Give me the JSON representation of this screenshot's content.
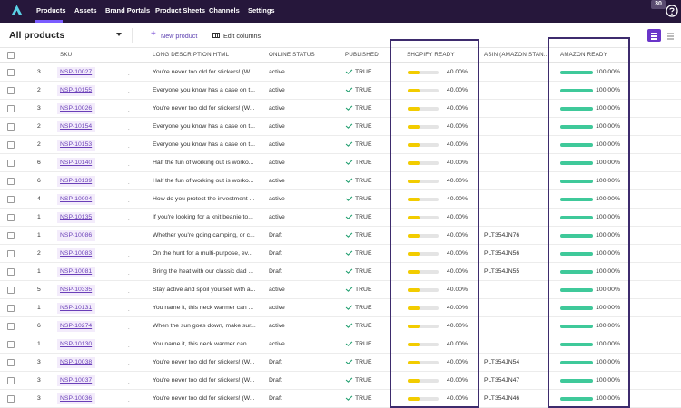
{
  "nav": {
    "items": [
      "Products",
      "Assets",
      "Brand Portals",
      "Product Sheets",
      "Channels",
      "Settings"
    ],
    "active": "Products",
    "notification_count": "30"
  },
  "toolbar": {
    "view_label": "All products",
    "new_product_label": "New product",
    "edit_columns_label": "Edit columns"
  },
  "columns": {
    "sku": "SKU",
    "long_description": "LONG DESCRIPTION HTML",
    "online_status": "ONLINE STATUS",
    "published": "PUBLISHED",
    "shopify_ready": "SHOPIFY READY",
    "asin": "ASIN (AMAZON STAN...",
    "amazon_ready": "AMAZON READY"
  },
  "rows": [
    {
      "count": "3",
      "sku": "NSP-10027",
      "desc": "You're never too old for stickers! (W...",
      "status": "active",
      "published": "TRUE",
      "shopify": "40.00%",
      "shopify_value": 0.4,
      "asin": "",
      "amazon": "100.00%",
      "amazon_value": 1.0
    },
    {
      "count": "2",
      "sku": "NSP-10155",
      "desc": "Everyone you know has a case on t...",
      "status": "active",
      "published": "TRUE",
      "shopify": "40.00%",
      "shopify_value": 0.4,
      "asin": "",
      "amazon": "100.00%",
      "amazon_value": 1.0
    },
    {
      "count": "3",
      "sku": "NSP-10026",
      "desc": "You're never too old for stickers! (W...",
      "status": "active",
      "published": "TRUE",
      "shopify": "40.00%",
      "shopify_value": 0.4,
      "asin": "",
      "amazon": "100.00%",
      "amazon_value": 1.0
    },
    {
      "count": "2",
      "sku": "NSP-10154",
      "desc": "Everyone you know has a case on t...",
      "status": "active",
      "published": "TRUE",
      "shopify": "40.00%",
      "shopify_value": 0.4,
      "asin": "",
      "amazon": "100.00%",
      "amazon_value": 1.0
    },
    {
      "count": "2",
      "sku": "NSP-10153",
      "desc": "Everyone you know has a case on t...",
      "status": "active",
      "published": "TRUE",
      "shopify": "40.00%",
      "shopify_value": 0.4,
      "asin": "",
      "amazon": "100.00%",
      "amazon_value": 1.0
    },
    {
      "count": "6",
      "sku": "NSP-10140",
      "desc": "Half the fun of working out is worko...",
      "status": "active",
      "published": "TRUE",
      "shopify": "40.00%",
      "shopify_value": 0.4,
      "asin": "",
      "amazon": "100.00%",
      "amazon_value": 1.0
    },
    {
      "count": "6",
      "sku": "NSP-10139",
      "desc": "Half the fun of working out is worko...",
      "status": "active",
      "published": "TRUE",
      "shopify": "40.00%",
      "shopify_value": 0.4,
      "asin": "",
      "amazon": "100.00%",
      "amazon_value": 1.0
    },
    {
      "count": "4",
      "sku": "NSP-10004",
      "desc": "How do you protect the investment ...",
      "status": "active",
      "published": "TRUE",
      "shopify": "40.00%",
      "shopify_value": 0.4,
      "asin": "",
      "amazon": "100.00%",
      "amazon_value": 1.0
    },
    {
      "count": "1",
      "sku": "NSP-10135",
      "desc": "If you're looking for a knit beanie to...",
      "status": "active",
      "published": "TRUE",
      "shopify": "40.00%",
      "shopify_value": 0.4,
      "asin": "",
      "amazon": "100.00%",
      "amazon_value": 1.0
    },
    {
      "count": "1",
      "sku": "NSP-10086",
      "desc": "Whether you're going camping, or c...",
      "status": "Draft",
      "published": "TRUE",
      "shopify": "40.00%",
      "shopify_value": 0.4,
      "asin": "PLT354JN76",
      "amazon": "100.00%",
      "amazon_value": 1.0
    },
    {
      "count": "2",
      "sku": "NSP-10083",
      "desc": "On the hunt for a multi-purpose, ev...",
      "status": "Draft",
      "published": "TRUE",
      "shopify": "40.00%",
      "shopify_value": 0.4,
      "asin": "PLT354JN56",
      "amazon": "100.00%",
      "amazon_value": 1.0
    },
    {
      "count": "1",
      "sku": "NSP-10081",
      "desc": "Bring the heat with our classic dad ...",
      "status": "Draft",
      "published": "TRUE",
      "shopify": "40.00%",
      "shopify_value": 0.4,
      "asin": "PLT354JN55",
      "amazon": "100.00%",
      "amazon_value": 1.0
    },
    {
      "count": "5",
      "sku": "NSP-10335",
      "desc": "Stay active and spoil yourself with a...",
      "status": "active",
      "published": "TRUE",
      "shopify": "40.00%",
      "shopify_value": 0.4,
      "asin": "",
      "amazon": "100.00%",
      "amazon_value": 1.0
    },
    {
      "count": "1",
      "sku": "NSP-10131",
      "desc": "You name it, this neck warmer can ...",
      "status": "active",
      "published": "TRUE",
      "shopify": "40.00%",
      "shopify_value": 0.4,
      "asin": "",
      "amazon": "100.00%",
      "amazon_value": 1.0
    },
    {
      "count": "6",
      "sku": "NSP-10274",
      "desc": "When the sun goes down, make sur...",
      "status": "active",
      "published": "TRUE",
      "shopify": "40.00%",
      "shopify_value": 0.4,
      "asin": "",
      "amazon": "100.00%",
      "amazon_value": 1.0
    },
    {
      "count": "1",
      "sku": "NSP-10130",
      "desc": "You name it, this neck warmer can ...",
      "status": "active",
      "published": "TRUE",
      "shopify": "40.00%",
      "shopify_value": 0.4,
      "asin": "",
      "amazon": "100.00%",
      "amazon_value": 1.0
    },
    {
      "count": "3",
      "sku": "NSP-10038",
      "desc": "You're never too old for stickers! (W...",
      "status": "Draft",
      "published": "TRUE",
      "shopify": "40.00%",
      "shopify_value": 0.4,
      "asin": "PLT354JN54",
      "amazon": "100.00%",
      "amazon_value": 1.0
    },
    {
      "count": "3",
      "sku": "NSP-10037",
      "desc": "You're never too old for stickers! (W...",
      "status": "Draft",
      "published": "TRUE",
      "shopify": "40.00%",
      "shopify_value": 0.4,
      "asin": "PLT354JN47",
      "amazon": "100.00%",
      "amazon_value": 1.0
    },
    {
      "count": "3",
      "sku": "NSP-10036",
      "desc": "You're never too old for stickers! (W...",
      "status": "Draft",
      "published": "TRUE",
      "shopify": "40.00%",
      "shopify_value": 0.4,
      "asin": "PLT354JN46",
      "amazon": "100.00%",
      "amazon_value": 1.0
    }
  ],
  "colors": {
    "nav_bg": "#26173b",
    "accent": "#6a35c9",
    "shopify_bar": "#f2cc00",
    "amazon_bar": "#3fc99a",
    "highlight_border": "#3d2b6d"
  }
}
